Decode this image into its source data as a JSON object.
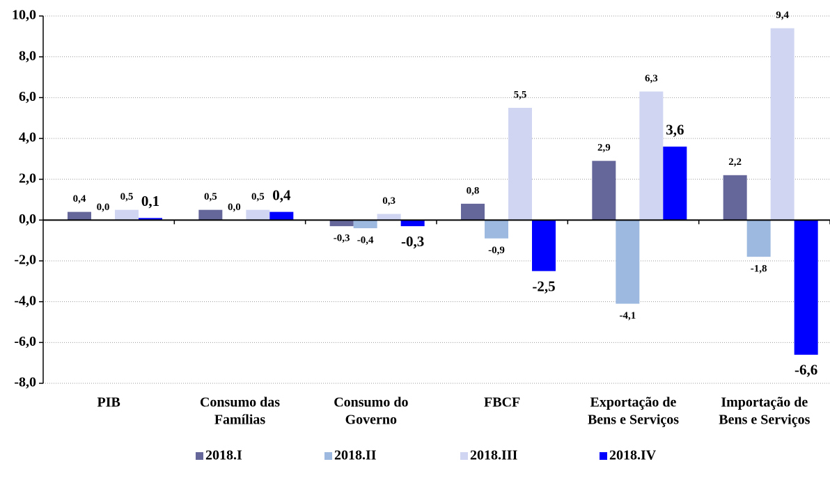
{
  "chart_data": {
    "type": "bar",
    "categories": [
      [
        "PIB"
      ],
      [
        "Consumo das",
        "Famílias"
      ],
      [
        "Consumo do",
        "Governo"
      ],
      [
        "FBCF"
      ],
      [
        "Exportação de",
        "Bens e Serviços"
      ],
      [
        "Importação de",
        "Bens e Serviços"
      ]
    ],
    "series": [
      {
        "name": "2018.I",
        "color": "#65669a",
        "values": [
          0.4,
          0.5,
          -0.3,
          0.8,
          2.9,
          2.2
        ],
        "value_labels": [
          "0,4",
          "0,5",
          "-0,3",
          "0,8",
          "2,9",
          "2,2"
        ]
      },
      {
        "name": "2018.II",
        "color": "#9db9e0",
        "values": [
          0.0,
          0.0,
          -0.4,
          -0.9,
          -4.1,
          -1.8
        ],
        "value_labels": [
          "0,0",
          "0,0",
          "-0,4",
          "-0,9",
          "-4,1",
          "-1,8"
        ]
      },
      {
        "name": "2018.III",
        "color": "#d0d6f2",
        "values": [
          0.5,
          0.5,
          0.3,
          5.5,
          6.3,
          9.4
        ],
        "value_labels": [
          "0,5",
          "0,5",
          "0,3",
          "5,5",
          "6,3",
          "9,4"
        ]
      },
      {
        "name": "2018.IV",
        "color": "#0000ff",
        "values": [
          0.1,
          0.4,
          -0.3,
          -2.5,
          3.6,
          -6.6
        ],
        "value_labels": [
          "0,1",
          "0,4",
          "-0,3",
          "-2,5",
          "3,6",
          "-6,6"
        ]
      }
    ],
    "ylim": [
      -8,
      10
    ],
    "yticks": [
      {
        "value": -8,
        "label": "-8,0"
      },
      {
        "value": -6,
        "label": "-6,0"
      },
      {
        "value": -4,
        "label": "-4,0"
      },
      {
        "value": -2,
        "label": "-2,0"
      },
      {
        "value": 0,
        "label": "0,0"
      },
      {
        "value": 2,
        "label": "2,0"
      },
      {
        "value": 4,
        "label": "4,0"
      },
      {
        "value": 6,
        "label": "6,0"
      },
      {
        "value": 8,
        "label": "8,0"
      },
      {
        "value": 10,
        "label": "10,0"
      }
    ],
    "grid": true,
    "legend": "bottom"
  }
}
